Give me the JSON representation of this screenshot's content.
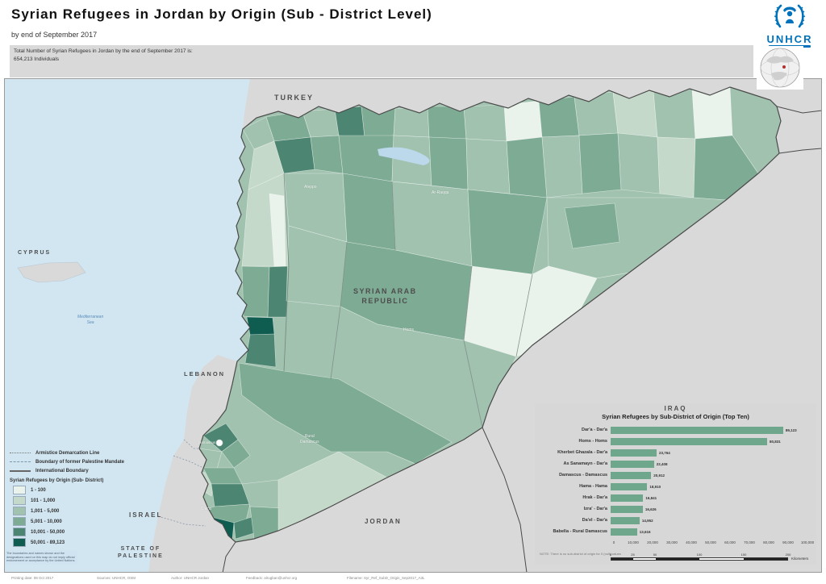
{
  "header": {
    "title": "Syrian Refugees in Jordan by Origin (Sub - District Level)",
    "subtitle": "by end of September 2017"
  },
  "info_box": {
    "line1": "Total Number of Syrian Refugees in Jordan by the end of September 2017 is:",
    "line2": "654,213 Individuals"
  },
  "logo": {
    "org": "UNHCR",
    "icon": "unhcr-refugee-wreath-icon",
    "brand_color": "#0072bc"
  },
  "map": {
    "country_labels": {
      "turkey": "TURKEY",
      "cyprus": "CYPRUS",
      "lebanon": "LEBANON",
      "israel": "ISRAEL",
      "palestine_line1": "STATE OF",
      "palestine_line2": "PALESTINE",
      "jordan": "JORDAN",
      "iraq": "IRAQ",
      "syria_line1": "SYRIAN ARAB",
      "syria_line2": "REPUBLIC"
    },
    "sea_label_line1": "Mediterranean",
    "sea_label_line2": "Sea",
    "place_labels": {
      "aleppo": "Aleppo",
      "ar_raqqa": "Ar-Raqqa",
      "homs": "Homs",
      "damascus": "Damascus",
      "rural_damascus_line1": "Rural",
      "rural_damascus_line2": "Damascus",
      "daraa": "Dar'a"
    }
  },
  "legend": {
    "line_items": [
      {
        "label": "Armistice Demarcation Line"
      },
      {
        "label": "Boundary of former Palestine Mandate"
      },
      {
        "label": "International Boundary"
      }
    ],
    "title": "Syrian Refugees by Origin (Sub- District)",
    "classes": [
      {
        "label": "1 - 100",
        "color": "#e9f3eb"
      },
      {
        "label": "101 - 1,000",
        "color": "#c5d9ca"
      },
      {
        "label": "1,001 - 5,000",
        "color": "#a1c2af"
      },
      {
        "label": "5,001 - 10,000",
        "color": "#7eab94"
      },
      {
        "label": "10,001 - 50,000",
        "color": "#4c8672"
      },
      {
        "label": "50,001 - 89,123",
        "color": "#0f5c50"
      }
    ]
  },
  "chart_data": {
    "type": "bar",
    "orientation": "horizontal",
    "title": "Syrian Refugees by Sub-District of Origin (Top Ten)",
    "categories": [
      "Dar'a - Dar'a",
      "Homs - Homs",
      "Kherbet Ghazala - Dar'a",
      "As Sanamayn - Dar'a",
      "Damascus - Damascus",
      "Hama - Hama",
      "Hrak - Dar'a",
      "Izra' - Dar'a",
      "Da'el - Dar'a",
      "Babella - Rural Damascus"
    ],
    "values": [
      89123,
      80831,
      23764,
      22408,
      20912,
      18910,
      16841,
      16626,
      14952,
      13616
    ],
    "value_labels": [
      "89,123",
      "80,831",
      "23,764",
      "22,408",
      "20,912",
      "18,910",
      "16,841",
      "16,626",
      "14,952",
      "13,616"
    ],
    "xlim": [
      0,
      100000
    ],
    "xticks": [
      "0",
      "10,000",
      "20,000",
      "30,000",
      "40,000",
      "50,000",
      "60,000",
      "70,000",
      "80,000",
      "90,000",
      "100,000"
    ],
    "bar_color": "#6fa78c",
    "legend_position": "none",
    "grid": false,
    "note": "NOTE: There is no sub-district of origin for 0 (null) values"
  },
  "scale_bar": {
    "ticks": [
      "0",
      "25",
      "50",
      "100",
      "150",
      "200"
    ],
    "unit": "Kilometers"
  },
  "footer": {
    "printing_date": "Printing date: 08 Oct 2017",
    "sources": "Sources: UNHCR, OSM",
    "author": "Author: UNHCR Jordan",
    "feedback": "Feedback: alrugban@unhcr.org",
    "filename": "Filename: Syr_Ref_SubD_Origin_Sep2017_A3L"
  },
  "disclaimer": "The boundaries and names shown and the designations used on this map do not imply official endorsement or acceptance by the United Nations."
}
